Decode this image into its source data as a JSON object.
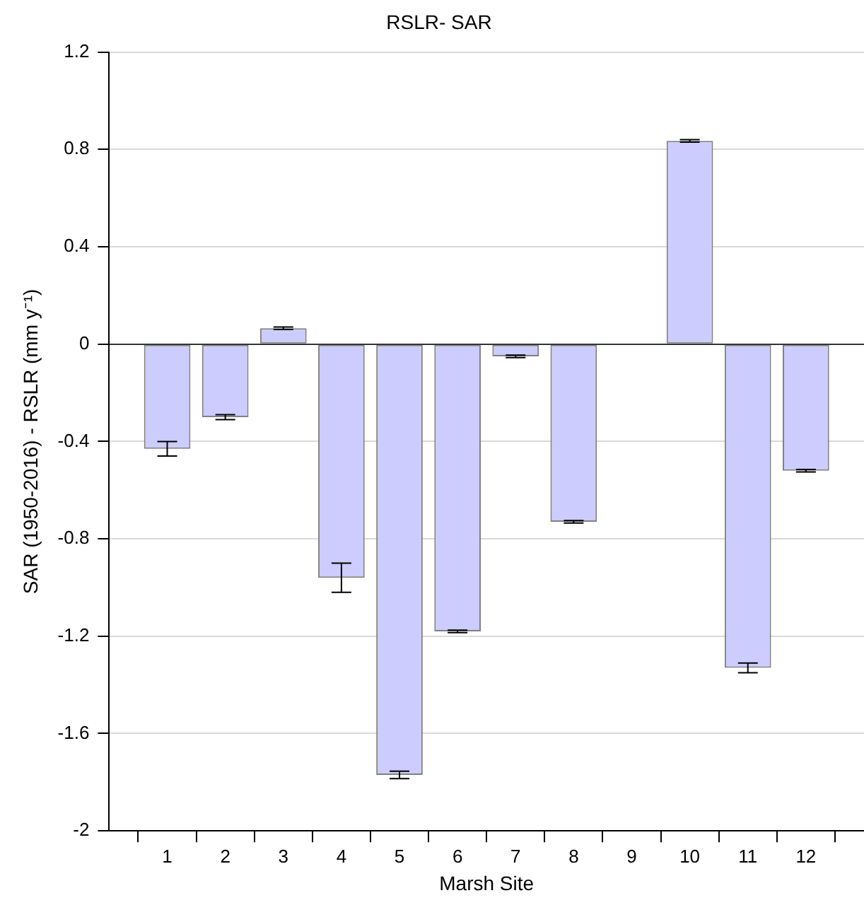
{
  "chart_data": {
    "type": "bar",
    "title": "RSLR- SAR",
    "xlabel": "Marsh Site",
    "ylabel": "SAR (1950-2016) - RSLR (mm y⁻¹)",
    "x": [
      1,
      2,
      3,
      4,
      5,
      6,
      7,
      8,
      9,
      10,
      11,
      12
    ],
    "values": [
      -0.43,
      -0.3,
      0.065,
      -0.96,
      -1.77,
      -1.18,
      -0.05,
      -0.73,
      null,
      0.835,
      -1.33,
      -0.52
    ],
    "errors": [
      0.03,
      0.01,
      0.005,
      0.06,
      0.015,
      0.005,
      0.005,
      0.005,
      null,
      0.005,
      0.02,
      0.005
    ],
    "color": "#ccccff",
    "xlim": [
      0,
      13
    ],
    "xticks": [
      1,
      2,
      3,
      4,
      5,
      6,
      7,
      8,
      9,
      10,
      11,
      12
    ],
    "ylim": [
      -2,
      1.2
    ],
    "yticks": [
      -2,
      -1.6,
      -1.2,
      -0.8,
      -0.4,
      0,
      0.4,
      0.8,
      1.2
    ],
    "grid": "y"
  }
}
